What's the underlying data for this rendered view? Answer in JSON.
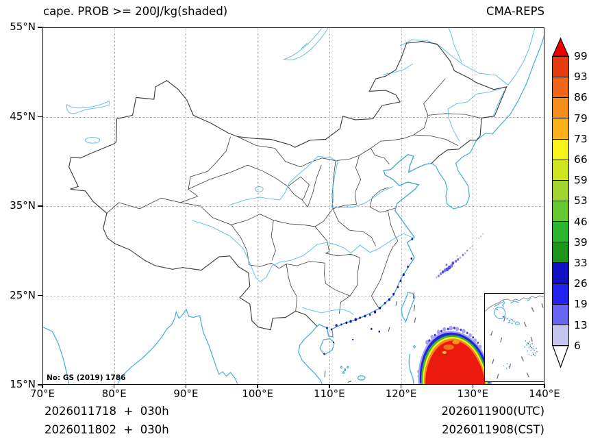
{
  "titles": {
    "left": "cape. PROB >= 200J/kg(shaded)",
    "right": "CMA-REPS"
  },
  "axes": {
    "x_ticks": [
      "70°E",
      "80°E",
      "90°E",
      "100°E",
      "110°E",
      "120°E",
      "130°E",
      "140°E"
    ],
    "y_ticks": [
      "55°N",
      "45°N",
      "35°N",
      "25°N",
      "15°N"
    ]
  },
  "map_note": "No: GS (2019) 1786",
  "colorbar": {
    "tick_labels": [
      "99",
      "93",
      "86",
      "79",
      "73",
      "66",
      "59",
      "53",
      "46",
      "39",
      "33",
      "26",
      "19",
      "13",
      "6"
    ],
    "band_colors": [
      "#e73c10",
      "#ef661a",
      "#f68c1c",
      "#fbb117",
      "#f8f21b",
      "#cfe51f",
      "#a0d62e",
      "#64c930",
      "#2eb52e",
      "#1d951d",
      "#0f0fc4",
      "#2121f0",
      "#6666f2",
      "#c5c5f0"
    ],
    "over_color": "#ee0000",
    "under_color": "#ffffff"
  },
  "footer": {
    "left_line1": "2026011718  +  030h",
    "left_line2": "2026011802  +  030h",
    "right_line1": "2026011900(UTC)",
    "right_line2": "2026011908(CST)"
  },
  "palette": {
    "coast": "#45b0dc",
    "river": "#6ac3e8",
    "border": "#3d3d3d",
    "grid": "#b8b8b8",
    "speckle": "#1a1ab8",
    "ryukyu": "#7d74e8",
    "blob-blue": "#2126dd",
    "blob-green": "#3cb62e",
    "blob-yellow": "#f3ee27",
    "blob-orange": "#f6871c",
    "blob-red": "#ec1a0e",
    "blob-fringe": "#a8a2f0"
  },
  "chart_data": {
    "type": "map",
    "title": "cape. PROB >= 200J/kg(shaded)",
    "model": "CMA-REPS",
    "projection": "equirectangular lat/lon",
    "lon_range_deg_e": [
      70,
      140
    ],
    "lat_range_deg_n": [
      15,
      55
    ],
    "grid_interval_deg": 10,
    "probability_levels_percent": [
      6,
      13,
      19,
      26,
      33,
      39,
      46,
      53,
      59,
      66,
      73,
      79,
      86,
      93,
      99
    ],
    "colorbar_extend": "both",
    "init_time_utc": "2026011718",
    "init_time_cst": "2026011802",
    "lead_hours": 30,
    "valid_time_utc": "2026011900",
    "valid_time_cst": "2026011908",
    "shaded_features": [
      {
        "name": "high-probability core",
        "description": "near-circular dome with probability >99% (red) ringed by narrow orange/yellow/green/blue 6-99% bands, in the Philippine Sea southeast of Taiwan, clipped by the map bottom edge and the South China Sea inset box",
        "lon_extent_deg_e": [
          122.5,
          132.6
        ],
        "lat_extent_deg_n": [
          15,
          20.9
        ],
        "max_percent": 99
      },
      {
        "name": "Ryukyu arc band",
        "description": "sparse speckled 6-26% probability band along the island arc northeast of Taiwan",
        "from_lonlat": [
          125.0,
          27.0
        ],
        "to_lonlat": [
          130.2,
          30.6
        ],
        "max_percent": 26
      },
      {
        "name": "coastal speckles",
        "description": "isolated 13-33% probability dots along the southeast China coast and northern South China Sea",
        "max_percent": 33
      }
    ],
    "map_layers": [
      "China national boundary",
      "Chinese province boundaries",
      "coastlines",
      "rivers and lakes",
      "South China Sea inset box with dashed boundary marks and island groups"
    ]
  }
}
